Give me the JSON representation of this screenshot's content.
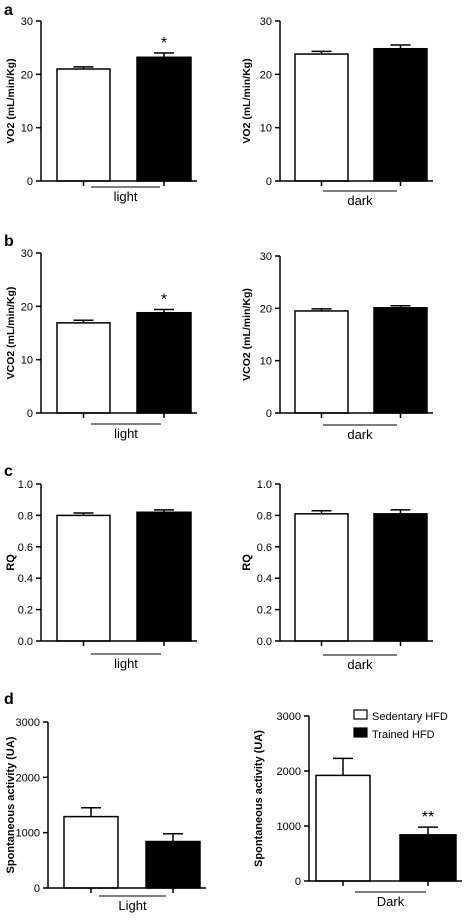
{
  "panel_letters": [
    "a",
    "b",
    "c",
    "d"
  ],
  "chart_data": [
    {
      "id": "a-light",
      "type": "bar",
      "panel": "a",
      "ylabel": "VO2 (mL/min/Kg)",
      "xlabel": "light",
      "categories": [
        "Sedentary HFD",
        "Trained HFD"
      ],
      "values": [
        21.0,
        23.2
      ],
      "errors": [
        0.4,
        0.8
      ],
      "ylim": [
        0,
        30
      ],
      "yticks": [
        0,
        10,
        20,
        30
      ],
      "annotation": "*",
      "annotation_index": 1
    },
    {
      "id": "a-dark",
      "type": "bar",
      "panel": "a",
      "ylabel": "VO2 (mL/min/Kg)",
      "xlabel": "dark",
      "categories": [
        "Sedentary HFD",
        "Trained HFD"
      ],
      "values": [
        23.8,
        24.8
      ],
      "errors": [
        0.5,
        0.7
      ],
      "ylim": [
        0,
        30
      ],
      "yticks": [
        0,
        10,
        20,
        30
      ]
    },
    {
      "id": "b-light",
      "type": "bar",
      "panel": "b",
      "ylabel": "VCO2 (mL/min/Kg)",
      "xlabel": "light",
      "categories": [
        "Sedentary HFD",
        "Trained HFD"
      ],
      "values": [
        16.9,
        18.8
      ],
      "errors": [
        0.5,
        0.6
      ],
      "ylim": [
        0,
        30
      ],
      "yticks": [
        0,
        10,
        20,
        30
      ],
      "annotation": "*",
      "annotation_index": 1
    },
    {
      "id": "b-dark",
      "type": "bar",
      "panel": "b",
      "ylabel": "VCO2 (mL/min/Kg)",
      "xlabel": "dark",
      "categories": [
        "Sedentary HFD",
        "Trained HFD"
      ],
      "values": [
        19.5,
        20.1
      ],
      "errors": [
        0.4,
        0.4
      ],
      "ylim": [
        0,
        30
      ],
      "yticks": [
        0,
        10,
        20,
        30
      ]
    },
    {
      "id": "c-light",
      "type": "bar",
      "panel": "c",
      "ylabel": "RQ",
      "xlabel": "light",
      "categories": [
        "Sedentary HFD",
        "Trained HFD"
      ],
      "values": [
        0.8,
        0.82
      ],
      "errors": [
        0.015,
        0.015
      ],
      "ylim": [
        0,
        1.0
      ],
      "yticks": [
        "0.0",
        "0.2",
        "0.4",
        "0.6",
        "0.8",
        "1.0"
      ]
    },
    {
      "id": "c-dark",
      "type": "bar",
      "panel": "c",
      "ylabel": "RQ",
      "xlabel": "dark",
      "categories": [
        "Sedentary HFD",
        "Trained HFD"
      ],
      "values": [
        0.81,
        0.81
      ],
      "errors": [
        0.02,
        0.025
      ],
      "ylim": [
        0,
        1.0
      ],
      "yticks": [
        "0.0",
        "0.2",
        "0.4",
        "0.6",
        "0.8",
        "1.0"
      ]
    },
    {
      "id": "d-light",
      "type": "bar",
      "panel": "d",
      "ylabel": "Spontaneous activity (UA)",
      "xlabel": "Light",
      "categories": [
        "Sedentary HFD",
        "Trained HFD"
      ],
      "values": [
        1290,
        840
      ],
      "errors": [
        160,
        140
      ],
      "ylim": [
        0,
        3000
      ],
      "yticks": [
        0,
        1000,
        2000,
        3000
      ]
    },
    {
      "id": "d-dark",
      "type": "bar",
      "panel": "d",
      "ylabel": "Spontaneous activity (UA)",
      "xlabel": "Dark",
      "categories": [
        "Sedentary HFD",
        "Trained HFD"
      ],
      "values": [
        1920,
        840
      ],
      "errors": [
        310,
        140
      ],
      "ylim": [
        0,
        3000
      ],
      "yticks": [
        0,
        1000,
        2000,
        3000
      ],
      "annotation": "**",
      "annotation_index": 1,
      "legend": {
        "placement": "top-right",
        "entries": [
          {
            "label": "Sedentary HFD",
            "fill": "#ffffff"
          },
          {
            "label": "Trained HFD",
            "fill": "#000000"
          }
        ]
      }
    }
  ]
}
